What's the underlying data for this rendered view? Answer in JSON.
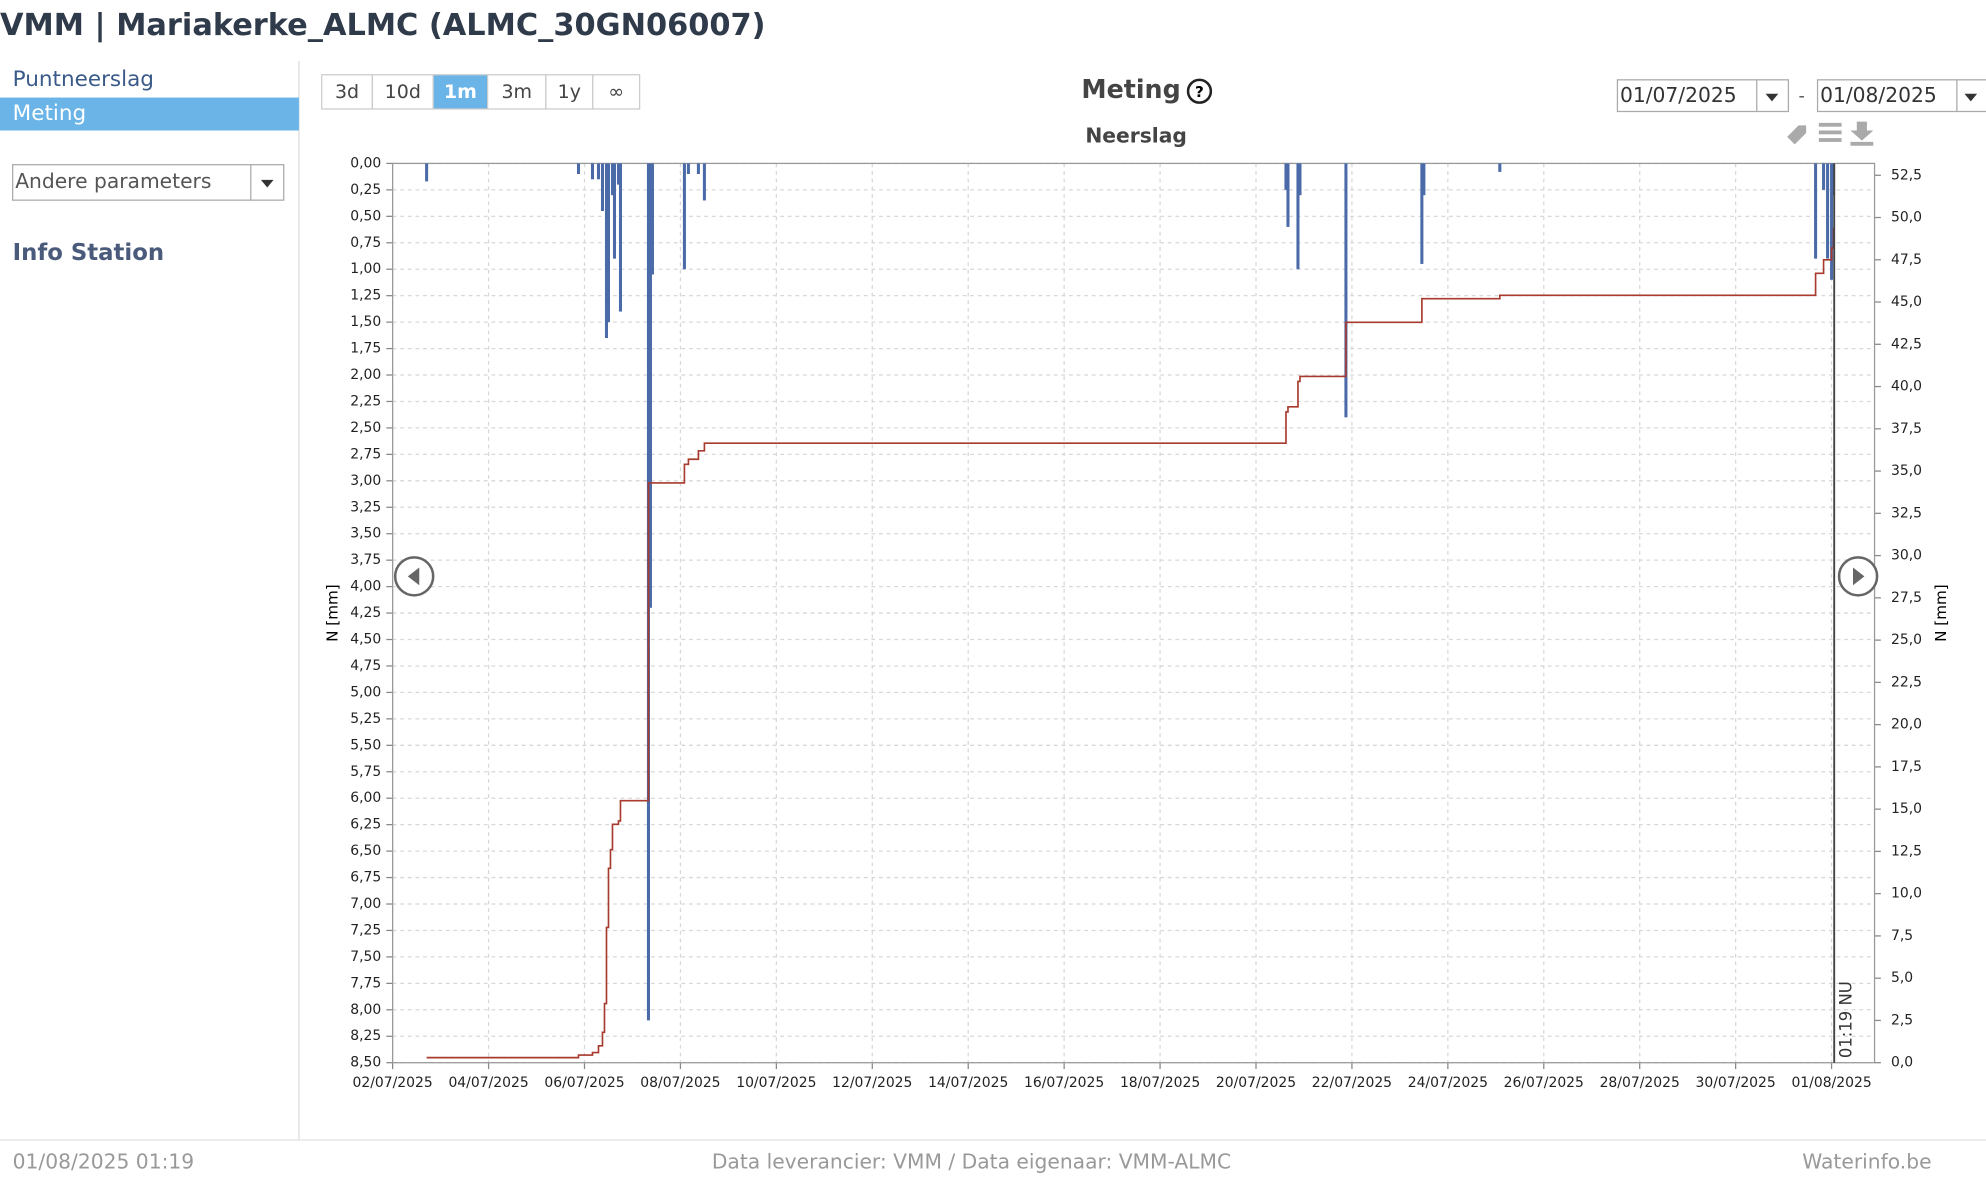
{
  "header": {
    "title": "VMM | Mariakerke_ALMC (ALMC_30GN06007)"
  },
  "sidebar": {
    "items": [
      "Puntneerslag",
      "Meting"
    ],
    "active": 1,
    "dropdown": "Andere parameters",
    "info": "Info Station"
  },
  "toolbar": {
    "ranges": [
      "3d",
      "10d",
      "1m",
      "3m",
      "1y",
      "∞"
    ],
    "active": 2,
    "date_from": "01/07/2025",
    "date_separator": "-",
    "date_to": "01/08/2025"
  },
  "chart_data": {
    "type": "combo",
    "title": "Meting",
    "subtitle": "Neerslag",
    "ylabel": "N [mm]",
    "y2label": "N [mm]",
    "grid": true,
    "yreversed": true,
    "xlim": [
      "02/07/2025 00:00",
      "01/08/2025 21:30"
    ],
    "xticks": [
      {
        "value": "02/07/2025 00:00",
        "label": "02/07/2025"
      },
      {
        "value": "04/07/2025 00:00",
        "label": "04/07/2025"
      },
      {
        "value": "06/07/2025 00:00",
        "label": "06/07/2025"
      },
      {
        "value": "08/07/2025 00:00",
        "label": "08/07/2025"
      },
      {
        "value": "10/07/2025 00:00",
        "label": "10/07/2025"
      },
      {
        "value": "12/07/2025 00:00",
        "label": "12/07/2025"
      },
      {
        "value": "14/07/2025 00:00",
        "label": "14/07/2025"
      },
      {
        "value": "16/07/2025 00:00",
        "label": "16/07/2025"
      },
      {
        "value": "18/07/2025 00:00",
        "label": "18/07/2025"
      },
      {
        "value": "20/07/2025 00:00",
        "label": "20/07/2025"
      },
      {
        "value": "22/07/2025 00:00",
        "label": "22/07/2025"
      },
      {
        "value": "24/07/2025 00:00",
        "label": "24/07/2025"
      },
      {
        "value": "26/07/2025 00:00",
        "label": "26/07/2025"
      },
      {
        "value": "28/07/2025 00:00",
        "label": "28/07/2025"
      },
      {
        "value": "30/07/2025 00:00",
        "label": "30/07/2025"
      },
      {
        "value": "01/08/2025 00:00",
        "label": "01/08/2025"
      }
    ],
    "ylim": [
      0,
      8.5
    ],
    "yticks": [
      {
        "value": 0,
        "label": "0,00"
      },
      {
        "value": 0.25,
        "label": "0,25"
      },
      {
        "value": 0.5,
        "label": "0,50"
      },
      {
        "value": 0.75,
        "label": "0,75"
      },
      {
        "value": 1,
        "label": "1,00"
      },
      {
        "value": 1.25,
        "label": "1,25"
      },
      {
        "value": 1.5,
        "label": "1,50"
      },
      {
        "value": 1.75,
        "label": "1,75"
      },
      {
        "value": 2,
        "label": "2,00"
      },
      {
        "value": 2.25,
        "label": "2,25"
      },
      {
        "value": 2.5,
        "label": "2,50"
      },
      {
        "value": 2.75,
        "label": "2,75"
      },
      {
        "value": 3,
        "label": "3,00"
      },
      {
        "value": 3.25,
        "label": "3,25"
      },
      {
        "value": 3.5,
        "label": "3,50"
      },
      {
        "value": 3.75,
        "label": "3,75"
      },
      {
        "value": 4,
        "label": "4,00"
      },
      {
        "value": 4.25,
        "label": "4,25"
      },
      {
        "value": 4.5,
        "label": "4,50"
      },
      {
        "value": 4.75,
        "label": "4,75"
      },
      {
        "value": 5,
        "label": "5,00"
      },
      {
        "value": 5.25,
        "label": "5,25"
      },
      {
        "value": 5.5,
        "label": "5,50"
      },
      {
        "value": 5.75,
        "label": "5,75"
      },
      {
        "value": 6,
        "label": "6,00"
      },
      {
        "value": 6.25,
        "label": "6,25"
      },
      {
        "value": 6.5,
        "label": "6,50"
      },
      {
        "value": 6.75,
        "label": "6,75"
      },
      {
        "value": 7,
        "label": "7,00"
      },
      {
        "value": 7.25,
        "label": "7,25"
      },
      {
        "value": 7.5,
        "label": "7,50"
      },
      {
        "value": 7.75,
        "label": "7,75"
      },
      {
        "value": 8,
        "label": "8,00"
      },
      {
        "value": 8.25,
        "label": "8,25"
      },
      {
        "value": 8.5,
        "label": "8,50"
      }
    ],
    "y2lim": [
      0,
      53.2
    ],
    "y2ticks": [
      {
        "value": 0,
        "label": "0,0"
      },
      {
        "value": 2.5,
        "label": "2,5"
      },
      {
        "value": 5,
        "label": "5,0"
      },
      {
        "value": 7.5,
        "label": "7,5"
      },
      {
        "value": 10,
        "label": "10,0"
      },
      {
        "value": 12.5,
        "label": "12,5"
      },
      {
        "value": 15,
        "label": "15,0"
      },
      {
        "value": 17.5,
        "label": "17,5"
      },
      {
        "value": 20,
        "label": "20,0"
      },
      {
        "value": 22.5,
        "label": "22,5"
      },
      {
        "value": 25,
        "label": "25,0"
      },
      {
        "value": 27.5,
        "label": "27,5"
      },
      {
        "value": 30,
        "label": "30,0"
      },
      {
        "value": 32.5,
        "label": "32,5"
      },
      {
        "value": 35,
        "label": "35,0"
      },
      {
        "value": 37.5,
        "label": "37,5"
      },
      {
        "value": 40,
        "label": "40,0"
      },
      {
        "value": 42.5,
        "label": "42,5"
      },
      {
        "value": 45,
        "label": "45,0"
      },
      {
        "value": 47.5,
        "label": "47,5"
      },
      {
        "value": 50,
        "label": "50,0"
      },
      {
        "value": 52.5,
        "label": "52,5"
      }
    ],
    "series": [
      {
        "type": "bar",
        "axis": "y",
        "color": "#4a6aa8",
        "x": [
          "02/07/2025 17:00",
          "05/07/2025 21:00",
          "06/07/2025 04:00",
          "06/07/2025 07:00",
          "06/07/2025 09:00",
          "06/07/2025 11:00",
          "06/07/2025 12:00",
          "06/07/2025 14:00",
          "06/07/2025 15:00",
          "06/07/2025 17:00",
          "06/07/2025 18:00",
          "07/07/2025 08:00",
          "07/07/2025 09:00",
          "07/07/2025 10:00",
          "08/07/2025 02:00",
          "08/07/2025 04:00",
          "08/07/2025 09:00",
          "08/07/2025 12:00",
          "20/07/2025 15:00",
          "20/07/2025 16:00",
          "20/07/2025 21:00",
          "20/07/2025 22:00",
          "21/07/2025 21:00",
          "23/07/2025 11:00",
          "23/07/2025 12:00",
          "25/07/2025 02:00",
          "31/07/2025 16:00",
          "31/07/2025 20:00",
          "31/07/2025 22:00",
          "01/08/2025 00:00",
          "01/08/2025 01:00"
        ],
        "values": [
          0.17,
          0.1,
          0.15,
          0.15,
          0.45,
          1.65,
          1.5,
          0.3,
          0.9,
          0.2,
          1.4,
          8.1,
          4.2,
          1.05,
          1.0,
          0.1,
          0.1,
          0.35,
          0.25,
          0.6,
          1.0,
          0.3,
          2.4,
          0.95,
          0.3,
          0.08,
          0.9,
          0.25,
          0.9,
          1.1,
          0.3
        ]
      },
      {
        "type": "line",
        "step": true,
        "axis": "y2",
        "color": "#a83a2e",
        "x": [
          "02/07/2025 17:00",
          "05/07/2025 21:00",
          "06/07/2025 04:00",
          "06/07/2025 07:00",
          "06/07/2025 09:00",
          "06/07/2025 10:00",
          "06/07/2025 11:00",
          "06/07/2025 12:00",
          "06/07/2025 13:00",
          "06/07/2025 14:00",
          "06/07/2025 17:00",
          "06/07/2025 18:00",
          "07/07/2025 08:00",
          "08/07/2025 02:00",
          "08/07/2025 04:00",
          "08/07/2025 09:00",
          "08/07/2025 12:00",
          "20/07/2025 15:00",
          "20/07/2025 16:00",
          "20/07/2025 21:00",
          "20/07/2025 22:00",
          "21/07/2025 21:00",
          "23/07/2025 11:00",
          "25/07/2025 02:00",
          "31/07/2025 16:00",
          "31/07/2025 20:00",
          "01/08/2025 00:00",
          "01/08/2025 01:00"
        ],
        "values": [
          0.3,
          0.45,
          0.6,
          1.0,
          1.8,
          3.5,
          8.0,
          11.5,
          12.6,
          14.1,
          14.3,
          15.5,
          34.3,
          35.4,
          35.7,
          36.2,
          36.65,
          38.5,
          38.8,
          40.3,
          40.6,
          43.8,
          45.2,
          45.4,
          46.7,
          47.5,
          48.2,
          49.4
        ]
      }
    ],
    "now": {
      "x": "01/08/2025 01:19",
      "label": "01:19 NU"
    }
  },
  "footer": {
    "timestamp": "01/08/2025 01:19",
    "source": "Data leverancier: VMM / Data eigenaar: VMM-ALMC",
    "site": "Waterinfo.be"
  }
}
